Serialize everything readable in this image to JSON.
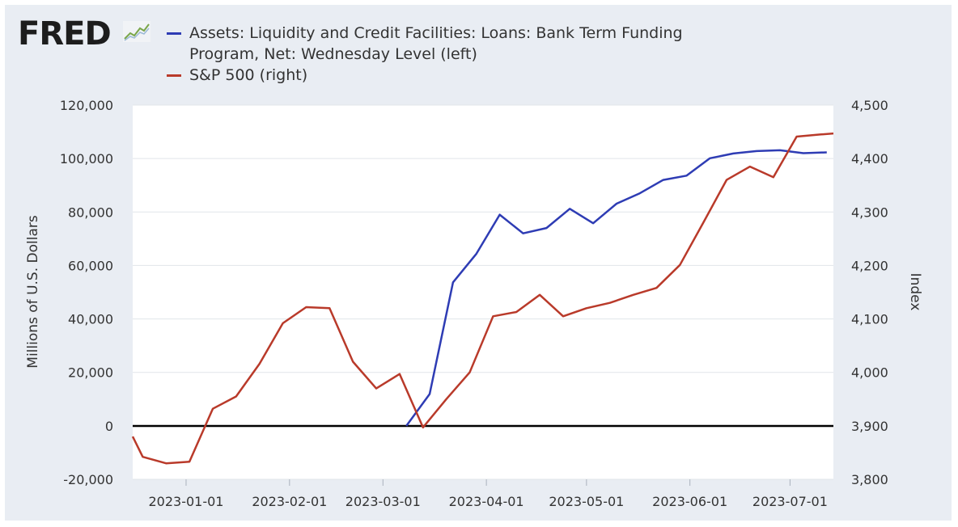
{
  "brand": {
    "logo_text": "FRED",
    "trend_icon": "trend-line-icon"
  },
  "colors": {
    "series_left": "#2e3cb4",
    "series_right": "#b93a2a",
    "zero_line": "#000000",
    "plot_bg": "#ffffff",
    "frame_bg": "#e9edf3"
  },
  "chart_data": {
    "type": "line",
    "legend": [
      {
        "label": "Assets: Liquidity and Credit Facilities: Loans: Bank Term Funding",
        "label_line2": "Program, Net: Wednesday Level (left)",
        "color": "#2e3cb4"
      },
      {
        "label": "S&P 500 (right)",
        "color": "#b93a2a"
      }
    ],
    "ylabel_left": "Millions of U.S. Dollars",
    "ylabel_right": "Index",
    "yleft_ticks": [
      "-20,000",
      "0",
      "20,000",
      "40,000",
      "60,000",
      "80,000",
      "100,000",
      "120,000"
    ],
    "yright_ticks": [
      "3,800",
      "3,900",
      "4,000",
      "4,100",
      "4,200",
      "4,300",
      "4,400",
      "4,500"
    ],
    "yleft_lim": [
      -20000,
      120000
    ],
    "yright_lim": [
      3800,
      4500
    ],
    "x_ticks": [
      "2023-01-01",
      "2023-02-01",
      "2023-03-01",
      "2023-04-01",
      "2023-05-01",
      "2023-06-01",
      "2023-07-01"
    ],
    "xlim": [
      "2022-12-16",
      "2023-07-14"
    ],
    "grid": true,
    "series": [
      {
        "name": "Assets: Liquidity and Credit Facilities: Loans: Bank Term Funding Program, Net: Wednesday Level",
        "axis": "left",
        "x": [
          "2023-03-08",
          "2023-03-15",
          "2023-03-22",
          "2023-03-29",
          "2023-04-05",
          "2023-04-12",
          "2023-04-19",
          "2023-04-26",
          "2023-05-03",
          "2023-05-10",
          "2023-05-17",
          "2023-05-24",
          "2023-05-31",
          "2023-06-07",
          "2023-06-14",
          "2023-06-21",
          "2023-06-28",
          "2023-07-05",
          "2023-07-12"
        ],
        "values": [
          0,
          11900,
          53700,
          64400,
          79000,
          72000,
          74000,
          81200,
          75800,
          83100,
          87000,
          92000,
          93600,
          100100,
          101900,
          102800,
          103100,
          102000,
          102300
        ]
      },
      {
        "name": "S&P 500",
        "axis": "right",
        "x": [
          "2022-12-16",
          "2022-12-19",
          "2022-12-26",
          "2023-01-02",
          "2023-01-09",
          "2023-01-16",
          "2023-01-23",
          "2023-01-30",
          "2023-02-06",
          "2023-02-13",
          "2023-02-20",
          "2023-02-27",
          "2023-03-06",
          "2023-03-13",
          "2023-03-20",
          "2023-03-27",
          "2023-04-03",
          "2023-04-10",
          "2023-04-17",
          "2023-04-24",
          "2023-05-01",
          "2023-05-08",
          "2023-05-15",
          "2023-05-22",
          "2023-05-29",
          "2023-06-05",
          "2023-06-12",
          "2023-06-19",
          "2023-06-26",
          "2023-07-03",
          "2023-07-10",
          "2023-07-14"
        ],
        "values": [
          3880,
          3842,
          3830,
          3833,
          3932,
          3955,
          4016,
          4092,
          4122,
          4120,
          4020,
          3970,
          3997,
          3897,
          3950,
          4000,
          4105,
          4113,
          4145,
          4105,
          4120,
          4130,
          4145,
          4158,
          4201,
          4280,
          4360,
          4385,
          4365,
          4441,
          4445,
          4447
        ]
      }
    ]
  }
}
